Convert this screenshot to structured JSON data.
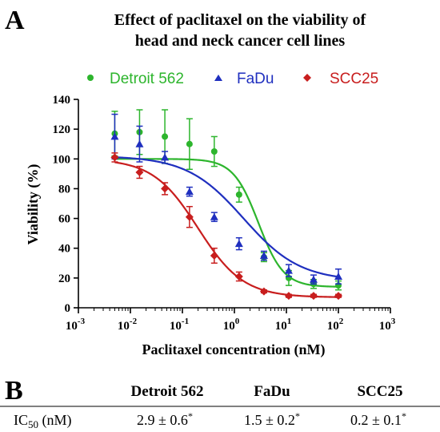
{
  "panel_a": {
    "letter": "A"
  },
  "panel_b": {
    "letter": "B"
  },
  "chart_data": {
    "type": "scatter",
    "title_lines": [
      "Effect of paclitaxel on the viability of",
      "head and neck cancer cell lines"
    ],
    "xlabel": "Paclitaxel concentration (nM)",
    "ylabel": "Viability (%)",
    "xscale": "log",
    "xlim": [
      0.001,
      1000
    ],
    "ylim": [
      0,
      140
    ],
    "x_ticks": [
      {
        "base": "10",
        "exp": "-3"
      },
      {
        "base": "10",
        "exp": "-2"
      },
      {
        "base": "10",
        "exp": "-1"
      },
      {
        "base": "10",
        "exp": "0"
      },
      {
        "base": "10",
        "exp": "1"
      },
      {
        "base": "10",
        "exp": "2"
      },
      {
        "base": "10",
        "exp": "3"
      }
    ],
    "y_ticks": [
      "0",
      "20",
      "40",
      "60",
      "80",
      "100",
      "120",
      "140"
    ],
    "legend_position": "top",
    "series": [
      {
        "name": "Detroit 562",
        "color": "#2db52d",
        "marker": "circle",
        "x": [
          0.005,
          0.015,
          0.046,
          0.137,
          0.41,
          1.23,
          3.7,
          11.1,
          33.3,
          100
        ],
        "y": [
          117,
          118,
          115,
          110,
          105,
          76,
          34,
          20,
          16,
          15
        ],
        "err": [
          15,
          15,
          18,
          17,
          10,
          5,
          3,
          5,
          3,
          3
        ],
        "fit": {
          "top": 100,
          "bottom": 14,
          "ic50": 2.9,
          "hill": 1.8
        }
      },
      {
        "name": "FaDu",
        "color": "#1f2fbf",
        "marker": "triangle",
        "x": [
          0.005,
          0.015,
          0.046,
          0.137,
          0.41,
          1.23,
          3.7,
          11.1,
          33.3,
          100
        ],
        "y": [
          115,
          110,
          101,
          78,
          61,
          43,
          35,
          25,
          19,
          21
        ],
        "err": [
          15,
          12,
          4,
          3,
          3,
          4,
          3,
          4,
          3,
          5
        ],
        "fit": {
          "top": 102,
          "bottom": 18,
          "ic50": 1.5,
          "hill": 0.8
        }
      },
      {
        "name": "SCC25",
        "color": "#c81e1e",
        "marker": "diamond",
        "x": [
          0.005,
          0.015,
          0.046,
          0.137,
          0.41,
          1.23,
          3.7,
          11.1,
          33.3,
          100
        ],
        "y": [
          101,
          91,
          80,
          61,
          35,
          21,
          11,
          8,
          8,
          8
        ],
        "err": [
          3,
          4,
          4,
          7,
          5,
          3,
          1,
          1,
          1,
          1
        ],
        "fit": {
          "top": 100,
          "bottom": 7,
          "ic50": 0.2,
          "hill": 1.0
        }
      }
    ]
  },
  "table": {
    "headers": [
      "",
      "Detroit 562",
      "FaDu",
      "SCC25"
    ],
    "row_label": "IC",
    "row_label_sub": "50",
    "row_label_unit": " (nM)",
    "cells": [
      {
        "value": "2.9 ± 0.6",
        "mark": "*"
      },
      {
        "value": "1.5 ± 0.2",
        "mark": "*"
      },
      {
        "value": "0.2 ± 0.1",
        "mark": "*"
      }
    ]
  }
}
